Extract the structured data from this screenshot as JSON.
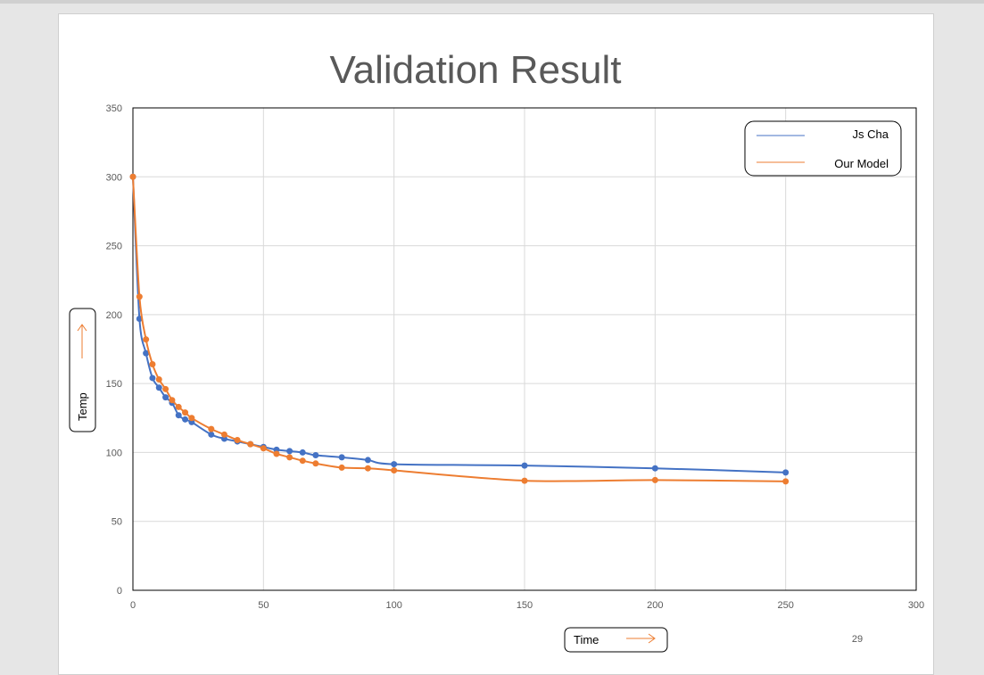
{
  "page_number": "29",
  "chart_data": {
    "type": "line",
    "title": "Validation Result",
    "xlabel": "Time",
    "ylabel": "Temp",
    "xlim": [
      0,
      300
    ],
    "ylim": [
      0,
      350
    ],
    "xticks": [
      0,
      50,
      100,
      150,
      200,
      250,
      300
    ],
    "yticks": [
      0,
      50,
      100,
      150,
      200,
      250,
      300,
      350
    ],
    "grid": true,
    "legend_position": "top-right",
    "x": [
      0,
      2.5,
      5,
      7.5,
      10,
      12.5,
      15,
      17.5,
      20,
      22.5,
      30,
      35,
      40,
      45,
      50,
      55,
      60,
      65,
      70,
      80,
      90,
      100,
      150,
      200,
      250
    ],
    "series": [
      {
        "name": "Js Cha",
        "color": "#4472c4",
        "values": [
          300,
          197,
          172,
          154,
          147,
          140,
          136,
          127,
          124,
          122,
          113,
          110,
          108,
          106,
          104,
          102,
          101,
          100,
          98,
          96.5,
          94.5,
          91.5,
          90.5,
          88.5,
          85.5
        ]
      },
      {
        "name": "Our Model",
        "color": "#ed7d31",
        "values": [
          300,
          213,
          182,
          164,
          153,
          146,
          138,
          133,
          129,
          125,
          117,
          113,
          109,
          106,
          103,
          99,
          96.5,
          94,
          92,
          89,
          88.5,
          87,
          79.5,
          80,
          79
        ]
      }
    ]
  }
}
